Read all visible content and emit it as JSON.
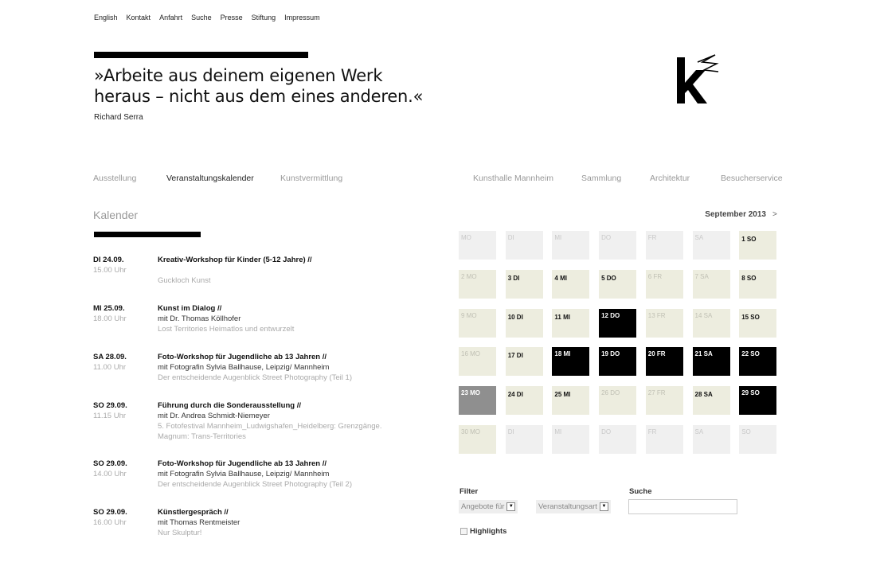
{
  "topnav": [
    "English",
    "Kontakt",
    "Anfahrt",
    "Suche",
    "Presse",
    "Stiftung",
    "Impressum"
  ],
  "quote": {
    "line1": "»Arbeite aus deinem eigenen Werk",
    "line2": "heraus – nicht aus dem eines anderen.«",
    "author": "Richard Serra"
  },
  "logo": {
    "text": "k"
  },
  "mainnav": {
    "left": [
      {
        "label": "Ausstellung"
      },
      {
        "label": "Veranstaltungskalender",
        "active": true
      },
      {
        "label": "Kunstvermittlung"
      }
    ],
    "right": [
      {
        "label": "Kunsthalle Mannheim"
      },
      {
        "label": "Sammlung"
      },
      {
        "label": "Architektur"
      },
      {
        "label": "Besucherservice"
      }
    ]
  },
  "section_title": "Kalender",
  "events": [
    {
      "date": "DI 24.09.",
      "time": "15.00 Uhr",
      "title": "Kreativ-Workshop für Kinder (5-12 Jahre) //",
      "sub": "",
      "context": [
        "Guckloch Kunst"
      ]
    },
    {
      "date": "MI 25.09.",
      "time": "18.00 Uhr",
      "title": "Kunst im Dialog //",
      "sub": "mit Dr. Thomas Köllhofer",
      "context": [
        "Lost Territories  Heimatlos und entwurzelt"
      ]
    },
    {
      "date": "SA 28.09.",
      "time": "11.00 Uhr",
      "title": "Foto-Workshop für Jugendliche ab 13 Jahren //",
      "sub": "mit Fotografin Sylvia Ballhause, Leipzig/ Mannheim",
      "context": [
        "Der entscheidende Augenblick  Street Photography (Teil 1)"
      ]
    },
    {
      "date": "SO 29.09.",
      "time": "11.15 Uhr",
      "title": "Führung durch die Sonderausstellung //",
      "sub": "mit Dr. Andrea Schmidt-Niemeyer",
      "context": [
        "5. Fotofestival Mannheim_Ludwigshafen_Heidelberg: Grenzgänge.",
        "Magnum: Trans-Territories"
      ]
    },
    {
      "date": "SO 29.09.",
      "time": "14.00 Uhr",
      "title": "Foto-Workshop für Jugendliche ab 13 Jahren //",
      "sub": "mit Fotografin Sylvia Ballhause, Leipzig/ Mannheim",
      "context": [
        "Der entscheidende Augenblick  Street Photography (Teil 2)"
      ]
    },
    {
      "date": "SO 29.09.",
      "time": "16.00 Uhr",
      "title": "Künstlergespräch //",
      "sub": "mit Thomas Rentmeister",
      "context": [
        "Nur Skulptur!"
      ]
    }
  ],
  "calendar": {
    "month_label": "September 2013",
    "next_label": ">",
    "colors": {
      "out": "#f0f0f0",
      "day": "#ededdf",
      "highlight": "#000000",
      "today": "#8f8f8f"
    },
    "weeks": [
      [
        {
          "l": "MO",
          "s": "out"
        },
        {
          "l": "DI",
          "s": "out"
        },
        {
          "l": "MI",
          "s": "out"
        },
        {
          "l": "DO",
          "s": "out"
        },
        {
          "l": "FR",
          "s": "out"
        },
        {
          "l": "SA",
          "s": "out"
        },
        {
          "l": "1 SO",
          "s": "ev"
        }
      ],
      [
        {
          "l": "2 MO",
          "s": "none"
        },
        {
          "l": "3 DI",
          "s": "ev"
        },
        {
          "l": "4 MI",
          "s": "ev"
        },
        {
          "l": "5 DO",
          "s": "ev"
        },
        {
          "l": "6 FR",
          "s": "none"
        },
        {
          "l": "7 SA",
          "s": "none"
        },
        {
          "l": "8 SO",
          "s": "ev"
        }
      ],
      [
        {
          "l": "9 MO",
          "s": "none"
        },
        {
          "l": "10 DI",
          "s": "ev"
        },
        {
          "l": "11 MI",
          "s": "ev"
        },
        {
          "l": "12 DO",
          "s": "hl"
        },
        {
          "l": "13 FR",
          "s": "none"
        },
        {
          "l": "14 SA",
          "s": "none"
        },
        {
          "l": "15 SO",
          "s": "ev"
        }
      ],
      [
        {
          "l": "16 MO",
          "s": "none"
        },
        {
          "l": "17 DI",
          "s": "ev"
        },
        {
          "l": "18 MI",
          "s": "hl"
        },
        {
          "l": "19 DO",
          "s": "hl"
        },
        {
          "l": "20 FR",
          "s": "hl"
        },
        {
          "l": "21 SA",
          "s": "hl"
        },
        {
          "l": "22 SO",
          "s": "hl"
        }
      ],
      [
        {
          "l": "23 MO",
          "s": "today"
        },
        {
          "l": "24 DI",
          "s": "ev"
        },
        {
          "l": "25 MI",
          "s": "ev"
        },
        {
          "l": "26 DO",
          "s": "none"
        },
        {
          "l": "27 FR",
          "s": "none"
        },
        {
          "l": "28 SA",
          "s": "ev"
        },
        {
          "l": "29 SO",
          "s": "hl"
        }
      ],
      [
        {
          "l": "30 MO",
          "s": "none"
        },
        {
          "l": "DI",
          "s": "out"
        },
        {
          "l": "MI",
          "s": "out"
        },
        {
          "l": "DO",
          "s": "out"
        },
        {
          "l": "FR",
          "s": "out"
        },
        {
          "l": "SA",
          "s": "out"
        },
        {
          "l": "SO",
          "s": "out"
        }
      ]
    ]
  },
  "filter": {
    "label": "Filter",
    "select1": "Angebote für",
    "select2": "Veranstaltungsart",
    "search_label": "Suche",
    "search_value": "",
    "highlights": "Highlights"
  }
}
